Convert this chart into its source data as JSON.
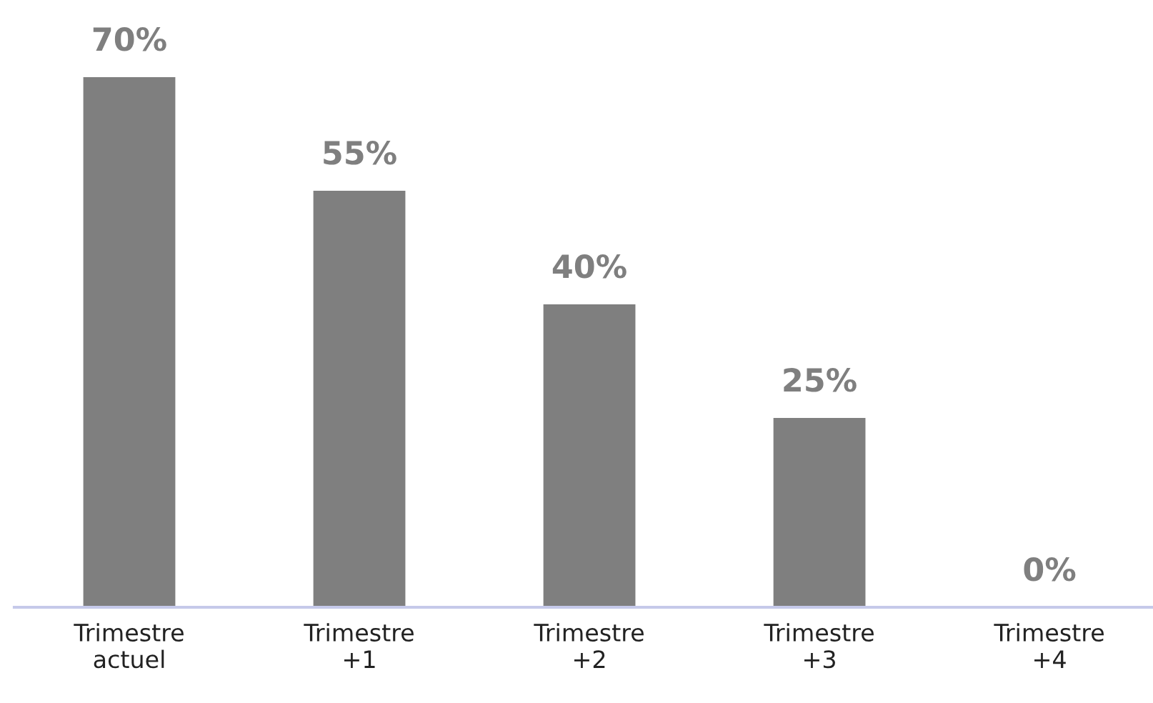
{
  "chart_data": {
    "type": "bar",
    "categories": [
      "Trimestre\nactuel",
      "Trimestre\n+1",
      "Trimestre\n+2",
      "Trimestre\n+3",
      "Trimestre\n+4"
    ],
    "values": [
      70,
      55,
      40,
      25,
      0
    ],
    "value_labels": [
      "70%",
      "55%",
      "40%",
      "25%",
      "0%"
    ],
    "color": "#7f7f7f",
    "grid": false,
    "legend": false
  }
}
